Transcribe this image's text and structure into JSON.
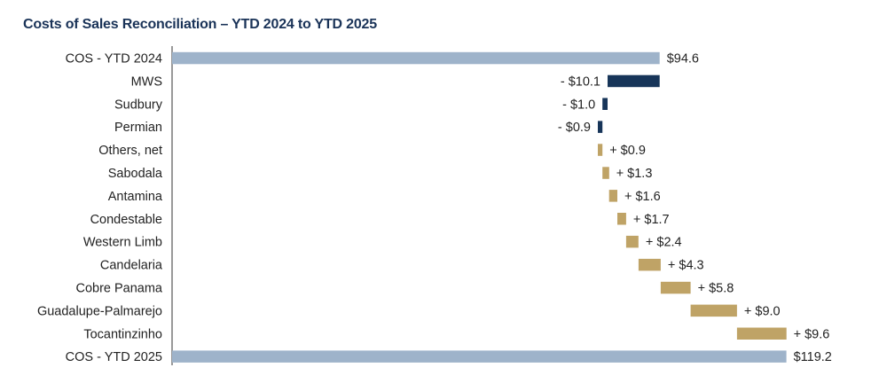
{
  "title": "Costs of Sales Reconciliation – YTD 2024 to YTD 2025",
  "colors": {
    "total": "#9eb3ca",
    "decrease": "#173559",
    "increase": "#bfa366"
  },
  "chart_data": {
    "type": "bar",
    "orientation": "horizontal",
    "subtype": "waterfall",
    "title": "Costs of Sales Reconciliation – YTD 2024 to YTD 2025",
    "xlim": [
      0,
      121.5
    ],
    "grid": false,
    "legend": "none",
    "items": [
      {
        "label": "COS - YTD 2024",
        "value": 94.6,
        "kind": "total",
        "display": "$94.6"
      },
      {
        "label": "MWS",
        "value": -10.1,
        "kind": "decrease",
        "display": "- $10.1"
      },
      {
        "label": "Sudbury",
        "value": -1.0,
        "kind": "decrease",
        "display": "- $1.0"
      },
      {
        "label": "Permian",
        "value": -0.9,
        "kind": "decrease",
        "display": "- $0.9"
      },
      {
        "label": "Others, net",
        "value": 0.9,
        "kind": "increase",
        "display": "+ $0.9"
      },
      {
        "label": "Sabodala",
        "value": 1.3,
        "kind": "increase",
        "display": "+ $1.3"
      },
      {
        "label": "Antamina",
        "value": 1.6,
        "kind": "increase",
        "display": "+ $1.6"
      },
      {
        "label": "Condestable",
        "value": 1.7,
        "kind": "increase",
        "display": "+ $1.7"
      },
      {
        "label": "Western Limb",
        "value": 2.4,
        "kind": "increase",
        "display": "+ $2.4"
      },
      {
        "label": "Candelaria",
        "value": 4.3,
        "kind": "increase",
        "display": "+ $4.3"
      },
      {
        "label": "Cobre Panama",
        "value": 5.8,
        "kind": "increase",
        "display": "+ $5.8"
      },
      {
        "label": "Guadalupe-Palmarejo",
        "value": 9.0,
        "kind": "increase",
        "display": "+ $9.0"
      },
      {
        "label": "Tocantinzinho",
        "value": 9.6,
        "kind": "increase",
        "display": "+ $9.6"
      },
      {
        "label": "COS - YTD 2025",
        "value": 119.2,
        "kind": "total",
        "display": "$119.2"
      }
    ]
  }
}
